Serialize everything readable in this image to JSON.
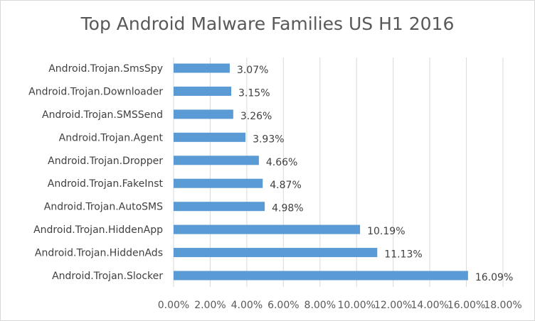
{
  "chart_data": {
    "type": "bar",
    "orientation": "horizontal",
    "title": "Top Android Malware Families US H1 2016",
    "categories": [
      "Android.Trojan.SmsSpy",
      "Android.Trojan.Downloader",
      "Android.Trojan.SMSSend",
      "Android.Trojan.Agent",
      "Android.Trojan.Dropper",
      "Android.Trojan.FakeInst",
      "Android.Trojan.AutoSMS",
      "Android.Trojan.HiddenApp",
      "Android.Trojan.HiddenAds",
      "Android.Trojan.Slocker"
    ],
    "values": [
      3.07,
      3.15,
      3.26,
      3.93,
      4.66,
      4.87,
      4.98,
      10.19,
      11.13,
      16.09
    ],
    "value_labels": [
      "3.07%",
      "3.15%",
      "3.26%",
      "3.93%",
      "4.66%",
      "4.87%",
      "4.98%",
      "10.19%",
      "11.13%",
      "16.09%"
    ],
    "xlim": [
      0,
      18
    ],
    "x_ticks": [
      0,
      2,
      4,
      6,
      8,
      10,
      12,
      14,
      16,
      18
    ],
    "x_tick_labels": [
      "0.00%",
      "2.00%",
      "4.00%",
      "6.00%",
      "8.00%",
      "10.00%",
      "12.00%",
      "14.00%",
      "16.00%",
      "18.00%"
    ],
    "xlabel": "",
    "ylabel": "",
    "grid": true,
    "legend": false,
    "bar_color": "#5b9bd5",
    "grid_color": "#d9d9d9"
  }
}
